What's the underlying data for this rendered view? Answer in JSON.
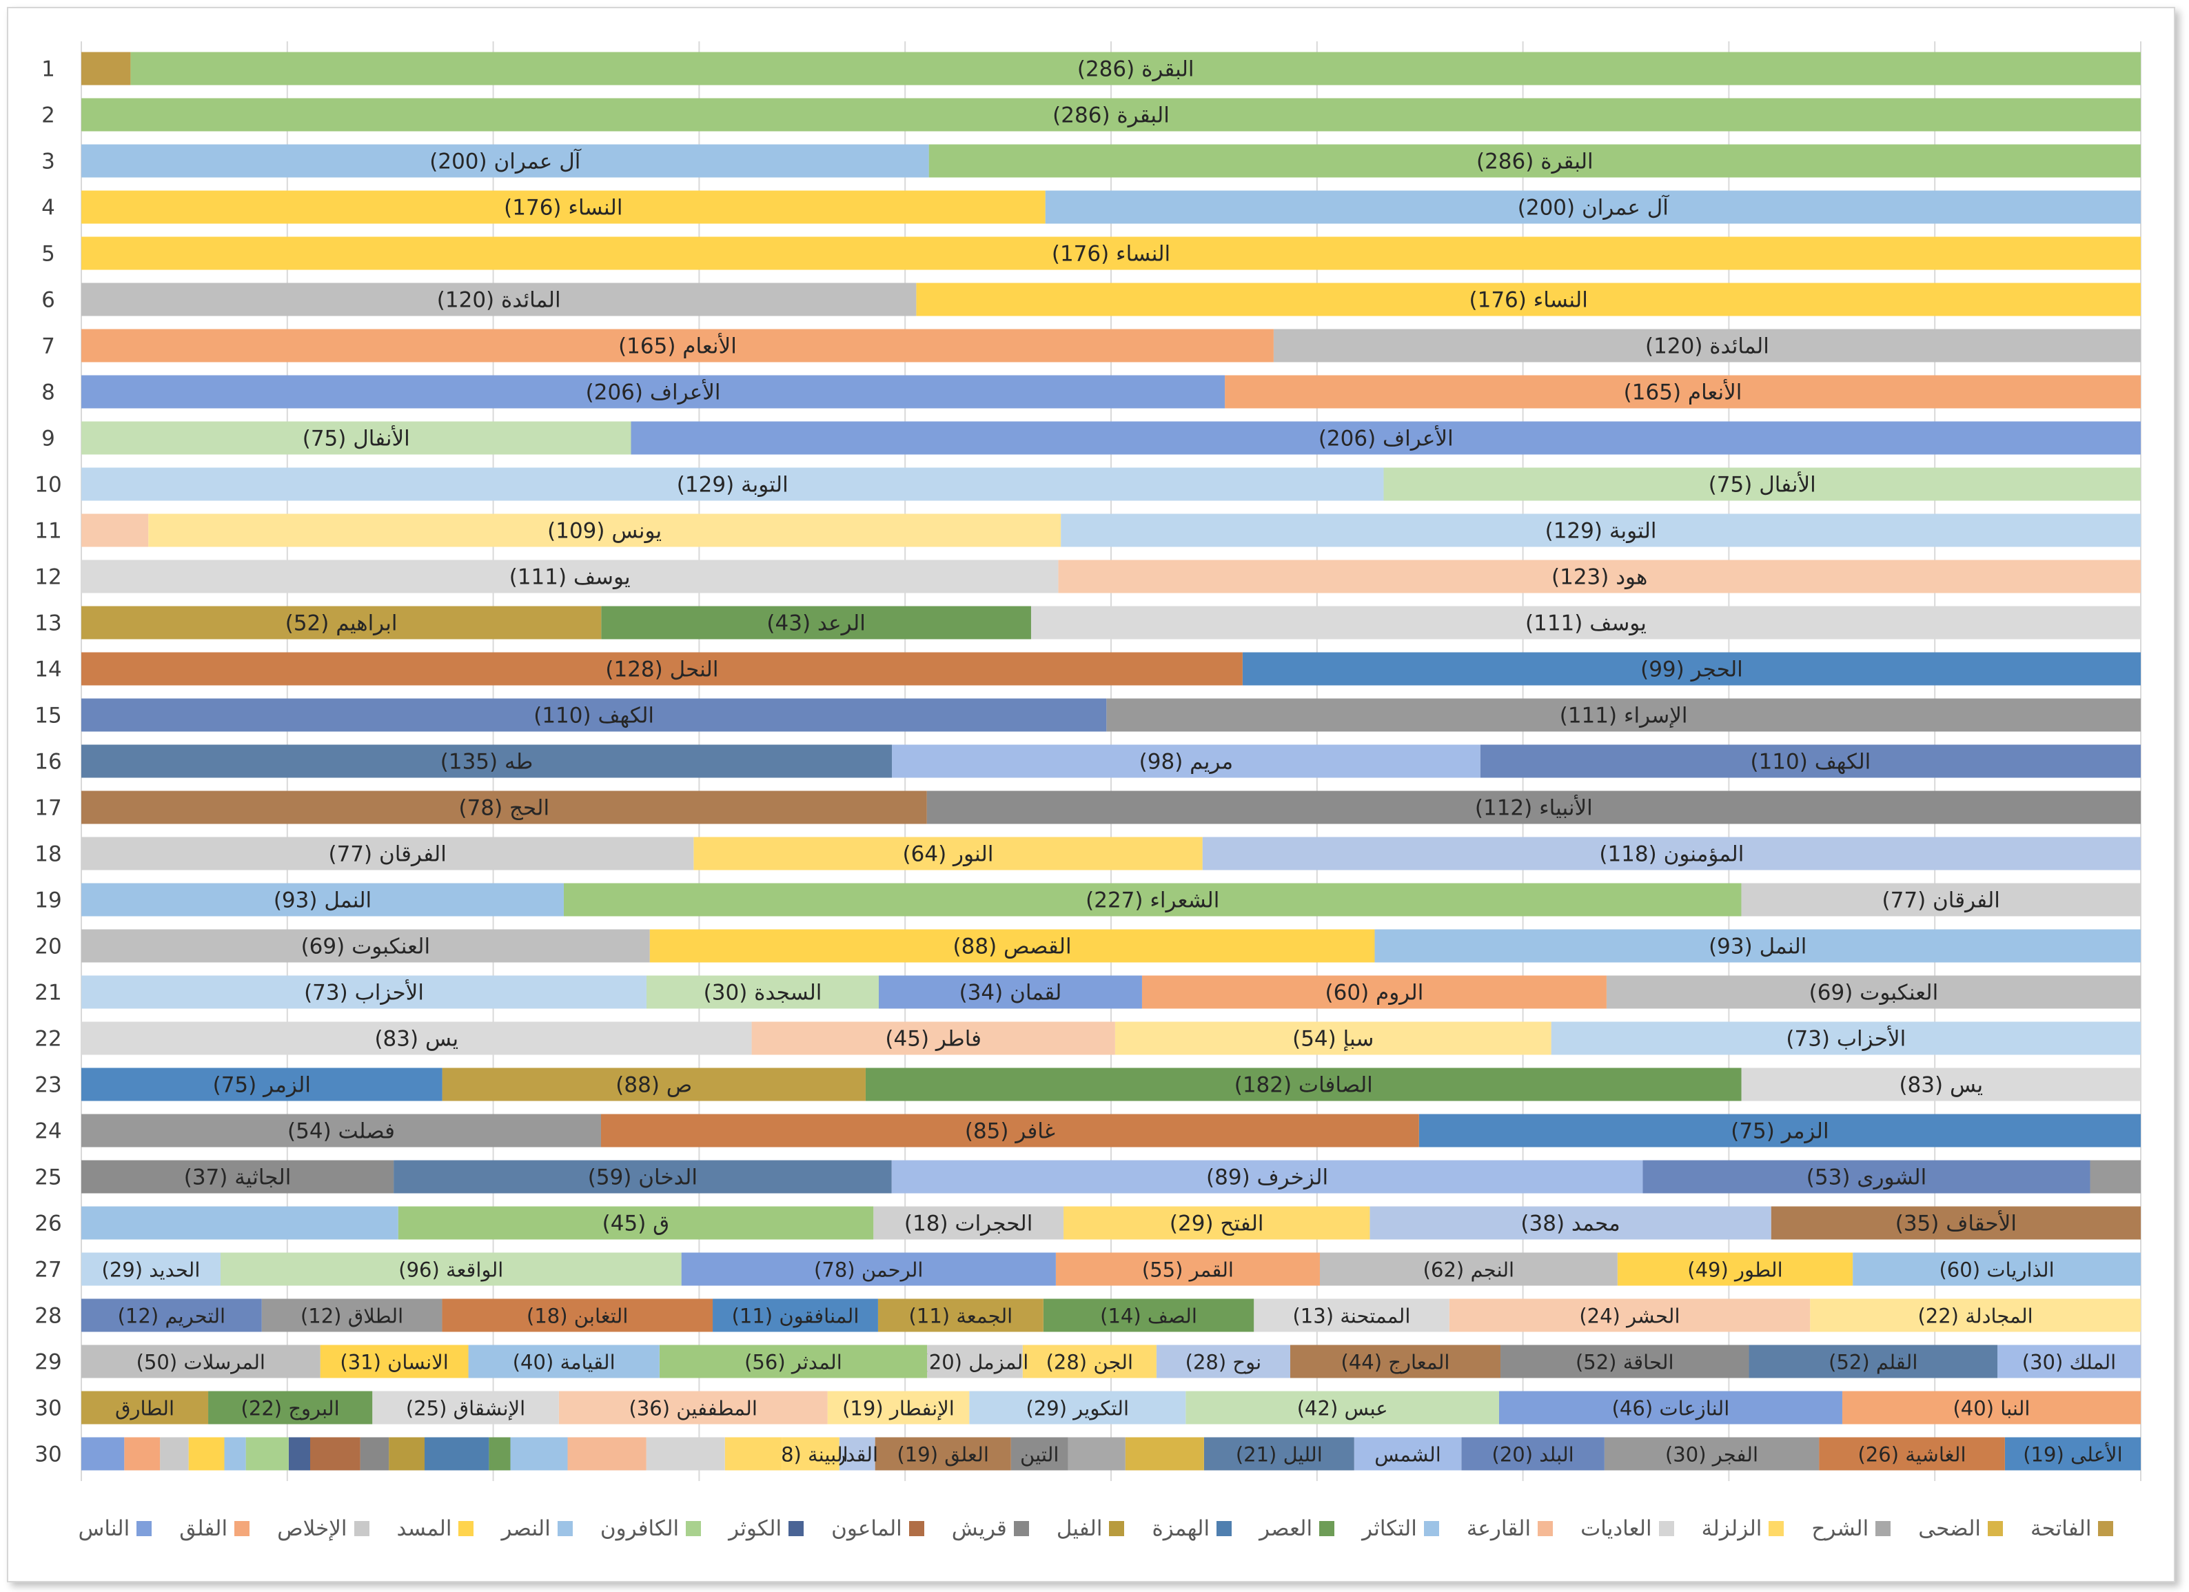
{
  "chart_data": {
    "type": "stacked-bar-horizontal",
    "grid": true,
    "rows": [
      {
        "label": "1",
        "segments": [
          {
            "name": "البقرة",
            "value": 286,
            "text": "البقرة (286)"
          },
          {
            "name": "الفاتحة",
            "value": 7,
            "text": ""
          }
        ]
      },
      {
        "label": "2",
        "segments": [
          {
            "name": "البقرة",
            "value": 286,
            "text": "البقرة (286)"
          }
        ]
      },
      {
        "label": "3",
        "segments": [
          {
            "name": "البقرة",
            "value": 286,
            "text": "البقرة (286)"
          },
          {
            "name": "آل عمران",
            "value": 200,
            "text": "آل عمران (200)"
          }
        ]
      },
      {
        "label": "4",
        "segments": [
          {
            "name": "آل عمران",
            "value": 200,
            "text": "آل عمران (200)"
          },
          {
            "name": "النساء",
            "value": 176,
            "text": "النساء (176)"
          }
        ]
      },
      {
        "label": "5",
        "segments": [
          {
            "name": "النساء",
            "value": 176,
            "text": "النساء (176)"
          }
        ]
      },
      {
        "label": "6",
        "segments": [
          {
            "name": "النساء",
            "value": 176,
            "text": "النساء (176)"
          },
          {
            "name": "المائدة",
            "value": 120,
            "text": "المائدة (120)"
          }
        ]
      },
      {
        "label": "7",
        "segments": [
          {
            "name": "المائدة",
            "value": 120,
            "text": "المائدة (120)"
          },
          {
            "name": "الأنعام",
            "value": 165,
            "text": "الأنعام (165)"
          }
        ]
      },
      {
        "label": "8",
        "segments": [
          {
            "name": "الأنعام",
            "value": 165,
            "text": "الأنعام (165)"
          },
          {
            "name": "الأعراف",
            "value": 206,
            "text": "الأعراف (206)"
          }
        ]
      },
      {
        "label": "9",
        "segments": [
          {
            "name": "الأعراف",
            "value": 206,
            "text": "الأعراف (206)"
          },
          {
            "name": "الأنفال",
            "value": 75,
            "text": "الأنفال (75)"
          }
        ]
      },
      {
        "label": "10",
        "segments": [
          {
            "name": "الأنفال",
            "value": 75,
            "text": "الأنفال (75)"
          },
          {
            "name": "التوبة",
            "value": 129,
            "text": "التوبة (129)"
          }
        ]
      },
      {
        "label": "11",
        "segments": [
          {
            "name": "التوبة",
            "value": 129,
            "text": "التوبة (129)"
          },
          {
            "name": "يونس",
            "value": 109,
            "text": "يونس (109)"
          },
          {
            "name": "هود",
            "value": 8,
            "text": ""
          }
        ]
      },
      {
        "label": "12",
        "segments": [
          {
            "name": "هود",
            "value": 123,
            "text": "هود (123)"
          },
          {
            "name": "يوسف",
            "value": 111,
            "text": "يوسف (111)"
          }
        ]
      },
      {
        "label": "13",
        "segments": [
          {
            "name": "يوسف",
            "value": 111,
            "text": "يوسف (111)"
          },
          {
            "name": "الرعد",
            "value": 43,
            "text": "الرعد (43)"
          },
          {
            "name": "ابراهيم",
            "value": 52,
            "text": "ابراهيم (52)"
          }
        ]
      },
      {
        "label": "14",
        "segments": [
          {
            "name": "الحجر",
            "value": 99,
            "text": "الحجر (99)"
          },
          {
            "name": "النحل",
            "value": 128,
            "text": "النحل (128)"
          }
        ]
      },
      {
        "label": "15",
        "segments": [
          {
            "name": "الإسراء",
            "value": 111,
            "text": "الإسراء (111)"
          },
          {
            "name": "الكهف",
            "value": 110,
            "text": "الكهف (110)"
          }
        ]
      },
      {
        "label": "16",
        "segments": [
          {
            "name": "الكهف",
            "value": 110,
            "text": "الكهف (110)"
          },
          {
            "name": "مريم",
            "value": 98,
            "text": "مريم (98)"
          },
          {
            "name": "طه",
            "value": 135,
            "text": "طه (135)"
          }
        ]
      },
      {
        "label": "17",
        "segments": [
          {
            "name": "الأنبياء",
            "value": 112,
            "text": "الأنبياء (112)"
          },
          {
            "name": "الحج",
            "value": 78,
            "text": "الحج (78)"
          }
        ]
      },
      {
        "label": "18",
        "segments": [
          {
            "name": "المؤمنون",
            "value": 118,
            "text": "المؤمنون (118)"
          },
          {
            "name": "النور",
            "value": 64,
            "text": "النور (64)"
          },
          {
            "name": "الفرقان",
            "value": 77,
            "text": "الفرقان (77)"
          }
        ]
      },
      {
        "label": "19",
        "segments": [
          {
            "name": "الفرقان",
            "value": 77,
            "text": "الفرقان (77)"
          },
          {
            "name": "الشعراء",
            "value": 227,
            "text": "الشعراء (227)"
          },
          {
            "name": "النمل",
            "value": 93,
            "text": "النمل (93)"
          }
        ]
      },
      {
        "label": "20",
        "segments": [
          {
            "name": "النمل",
            "value": 93,
            "text": "النمل (93)"
          },
          {
            "name": "القصص",
            "value": 88,
            "text": "القصص (88)"
          },
          {
            "name": "العنكبوت",
            "value": 69,
            "text": "العنكبوت (69)"
          }
        ]
      },
      {
        "label": "21",
        "segments": [
          {
            "name": "العنكبوت",
            "value": 69,
            "text": "العنكبوت (69)"
          },
          {
            "name": "الروم",
            "value": 60,
            "text": "الروم (60)"
          },
          {
            "name": "لقمان",
            "value": 34,
            "text": "لقمان (34)"
          },
          {
            "name": "السجدة",
            "value": 30,
            "text": "السجدة (30)"
          },
          {
            "name": "الأحزاب",
            "value": 73,
            "text": "الأحزاب (73)"
          }
        ]
      },
      {
        "label": "22",
        "segments": [
          {
            "name": "الأحزاب",
            "value": 73,
            "text": "الأحزاب (73)"
          },
          {
            "name": "سبإ",
            "value": 54,
            "text": "سبإ (54)"
          },
          {
            "name": "فاطر",
            "value": 45,
            "text": "فاطر (45)"
          },
          {
            "name": "يس",
            "value": 83,
            "text": "يس (83)"
          }
        ]
      },
      {
        "label": "23",
        "segments": [
          {
            "name": "يس",
            "value": 83,
            "text": "يس (83)"
          },
          {
            "name": "الصافات",
            "value": 182,
            "text": "الصافات (182)"
          },
          {
            "name": "ص",
            "value": 88,
            "text": "ص (88)"
          },
          {
            "name": "الزمر",
            "value": 75,
            "text": "الزمر (75)"
          }
        ]
      },
      {
        "label": "24",
        "segments": [
          {
            "name": "الزمر",
            "value": 75,
            "text": "الزمر (75)"
          },
          {
            "name": "غافر",
            "value": 85,
            "text": "غافر (85)"
          },
          {
            "name": "فصلت",
            "value": 54,
            "text": "فصلت (54)"
          }
        ]
      },
      {
        "label": "25",
        "segments": [
          {
            "name": "فصلت",
            "value": 6,
            "text": ""
          },
          {
            "name": "الشورى",
            "value": 53,
            "text": "الشورى (53)"
          },
          {
            "name": "الزخرف",
            "value": 89,
            "text": "الزخرف (89)"
          },
          {
            "name": "الدخان",
            "value": 59,
            "text": "الدخان (59)"
          },
          {
            "name": "الجاثية",
            "value": 37,
            "text": "الجاثية (37)"
          }
        ]
      },
      {
        "label": "26",
        "segments": [
          {
            "name": "الأحقاف",
            "value": 35,
            "text": "الأحقاف (35)"
          },
          {
            "name": "محمد",
            "value": 38,
            "text": "محمد (38)"
          },
          {
            "name": "الفتح",
            "value": 29,
            "text": "الفتح (29)"
          },
          {
            "name": "الحجرات",
            "value": 18,
            "text": "الحجرات (18)"
          },
          {
            "name": "ق",
            "value": 45,
            "text": "ق (45)"
          },
          {
            "name": "الذاريات",
            "value": 30,
            "text": ""
          }
        ]
      },
      {
        "label": "27",
        "segments": [
          {
            "name": "الذاريات",
            "value": 60,
            "text": "الذاريات (60)"
          },
          {
            "name": "الطور",
            "value": 49,
            "text": "الطور (49)"
          },
          {
            "name": "النجم",
            "value": 62,
            "text": "النجم (62)"
          },
          {
            "name": "القمر",
            "value": 55,
            "text": "القمر (55)"
          },
          {
            "name": "الرحمن",
            "value": 78,
            "text": "الرحمن (78)"
          },
          {
            "name": "الواقعة",
            "value": 96,
            "text": "الواقعة (96)"
          },
          {
            "name": "الحديد",
            "value": 29,
            "text": "الحديد (29)"
          }
        ]
      },
      {
        "label": "28",
        "segments": [
          {
            "name": "المجادلة",
            "value": 22,
            "text": "المجادلة (22)"
          },
          {
            "name": "الحشر",
            "value": 24,
            "text": "الحشر (24)"
          },
          {
            "name": "الممتحنة",
            "value": 13,
            "text": "الممتحنة (13)"
          },
          {
            "name": "الصف",
            "value": 14,
            "text": "الصف (14)"
          },
          {
            "name": "الجمعة",
            "value": 11,
            "text": "الجمعة (11)"
          },
          {
            "name": "المنافقون",
            "value": 11,
            "text": "المنافقون (11)"
          },
          {
            "name": "التغابن",
            "value": 18,
            "text": "التغابن (18)"
          },
          {
            "name": "الطلاق",
            "value": 12,
            "text": "الطلاق (12)"
          },
          {
            "name": "التحريم",
            "value": 12,
            "text": "التحريم (12)"
          }
        ]
      },
      {
        "label": "29",
        "segments": [
          {
            "name": "الملك",
            "value": 30,
            "text": "الملك (30)"
          },
          {
            "name": "القلم",
            "value": 52,
            "text": "القلم (52)"
          },
          {
            "name": "الحاقة",
            "value": 52,
            "text": "الحاقة (52)"
          },
          {
            "name": "المعارج",
            "value": 44,
            "text": "المعارج (44)"
          },
          {
            "name": "نوح",
            "value": 28,
            "text": "نوح (28)"
          },
          {
            "name": "الجن",
            "value": 28,
            "text": "الجن (28)"
          },
          {
            "name": "المزمل",
            "value": 20,
            "text": "المزمل (20)"
          },
          {
            "name": "المدثر",
            "value": 56,
            "text": "المدثر (56)"
          },
          {
            "name": "القيامة",
            "value": 40,
            "text": "القيامة (40)"
          },
          {
            "name": "الانسان",
            "value": 31,
            "text": "الانسان (31)"
          },
          {
            "name": "المرسلات",
            "value": 50,
            "text": "المرسلات (50)"
          }
        ]
      },
      {
        "label": "30",
        "segments": [
          {
            "name": "النبا",
            "value": 40,
            "text": "النبا (40)"
          },
          {
            "name": "النازعات",
            "value": 46,
            "text": "النازعات (46)"
          },
          {
            "name": "عبس",
            "value": 42,
            "text": "عبس (42)"
          },
          {
            "name": "التكوير",
            "value": 29,
            "text": "التكوير (29)"
          },
          {
            "name": "الإنفطار",
            "value": 19,
            "text": "الإنفطار (19)"
          },
          {
            "name": "المطففين",
            "value": 36,
            "text": "المطففين (36)"
          },
          {
            "name": "الإنشقاق",
            "value": 25,
            "text": "الإنشقاق (25)"
          },
          {
            "name": "البروج",
            "value": 22,
            "text": "البروج (22)"
          },
          {
            "name": "الطارق",
            "value": 17,
            "text": "الطارق"
          }
        ]
      },
      {
        "label": "30",
        "segments": [
          {
            "name": "الأعلى",
            "value": 19,
            "text": "الأعلى (19)"
          },
          {
            "name": "الغاشية",
            "value": 26,
            "text": "الغاشية (26)"
          },
          {
            "name": "الفجر",
            "value": 30,
            "text": "الفجر (30)"
          },
          {
            "name": "البلد",
            "value": 20,
            "text": "البلد (20)"
          },
          {
            "name": "الشمس",
            "value": 15,
            "text": "الشمس"
          },
          {
            "name": "الليل",
            "value": 21,
            "text": "الليل (21)"
          },
          {
            "name": "الضحى",
            "value": 11,
            "text": ""
          },
          {
            "name": "الشرح",
            "value": 8,
            "text": ""
          },
          {
            "name": "التين",
            "value": 8,
            "text": "التين"
          },
          {
            "name": "العلق",
            "value": 19,
            "text": "العلق (19)"
          },
          {
            "name": "القدر",
            "value": 5,
            "text": "القدر"
          },
          {
            "name": "البينة",
            "value": 8,
            "text": "البينة (8)"
          },
          {
            "name": "الزلزلة",
            "value": 8,
            "text": ""
          },
          {
            "name": "العاديات",
            "value": 11,
            "text": ""
          },
          {
            "name": "القارعة",
            "value": 11,
            "text": ""
          },
          {
            "name": "التكاثر",
            "value": 8,
            "text": ""
          },
          {
            "name": "العصر",
            "value": 3,
            "text": ""
          },
          {
            "name": "الهمزة",
            "value": 9,
            "text": ""
          },
          {
            "name": "الفيل",
            "value": 5,
            "text": ""
          },
          {
            "name": "قريش",
            "value": 4,
            "text": ""
          },
          {
            "name": "الماعون",
            "value": 7,
            "text": ""
          },
          {
            "name": "الكوثر",
            "value": 3,
            "text": ""
          },
          {
            "name": "الكافرون",
            "value": 6,
            "text": ""
          },
          {
            "name": "النصر",
            "value": 3,
            "text": ""
          },
          {
            "name": "المسد",
            "value": 5,
            "text": ""
          },
          {
            "name": "الإخلاص",
            "value": 4,
            "text": ""
          },
          {
            "name": "الفلق",
            "value": 5,
            "text": ""
          },
          {
            "name": "الناس",
            "value": 6,
            "text": ""
          }
        ]
      }
    ],
    "legend": [
      {
        "name": "الفاتحة",
        "color": "#BF9B48"
      },
      {
        "name": "الضحى",
        "color": "#D9B547"
      },
      {
        "name": "الشرح",
        "color": "#A8A8A8"
      },
      {
        "name": "الزلزلة",
        "color": "#FFD967"
      },
      {
        "name": "العاديات",
        "color": "#D5D5D5"
      },
      {
        "name": "القارعة",
        "color": "#F5B995"
      },
      {
        "name": "التكاثر",
        "color": "#9DC3E6"
      },
      {
        "name": "العصر",
        "color": "#6E9D57"
      },
      {
        "name": "الهمزة",
        "color": "#4F7FAF"
      },
      {
        "name": "الفيل",
        "color": "#B89B3E"
      },
      {
        "name": "قريش",
        "color": "#888888"
      },
      {
        "name": "الماعون",
        "color": "#B06E46"
      },
      {
        "name": "الكوثر",
        "color": "#4A6495"
      },
      {
        "name": "الكافرون",
        "color": "#A9D18E"
      },
      {
        "name": "النصر",
        "color": "#9DC3E6"
      },
      {
        "name": "المسد",
        "color": "#FFD44D"
      },
      {
        "name": "الإخلاص",
        "color": "#C9C9C9"
      },
      {
        "name": "الفلق",
        "color": "#F4A77A"
      },
      {
        "name": "الناس",
        "color": "#7F9FDB"
      }
    ]
  }
}
